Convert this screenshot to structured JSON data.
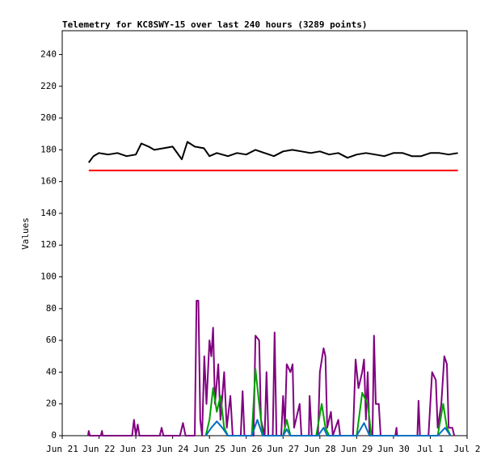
{
  "chart_data": {
    "type": "line",
    "title": "Telemetry for KC8SWY-15 over last 240 hours (3289 points)",
    "y_label": "Values",
    "xlim": [
      0,
      11
    ],
    "xticks": [
      {
        "value": 0,
        "label": "Jun 21"
      },
      {
        "value": 1,
        "label": "Jun 22"
      },
      {
        "value": 2,
        "label": "Jun 23"
      },
      {
        "value": 3,
        "label": "Jun 24"
      },
      {
        "value": 4,
        "label": "Jun 25"
      },
      {
        "value": 5,
        "label": "Jun 26"
      },
      {
        "value": 6,
        "label": "Jun 27"
      },
      {
        "value": 7,
        "label": "Jun 28"
      },
      {
        "value": 8,
        "label": "Jun 29"
      },
      {
        "value": 9,
        "label": "Jun 30"
      },
      {
        "value": 10,
        "label": "Jul 1"
      },
      {
        "value": 11,
        "label": "Jul 2"
      }
    ],
    "ylim": [
      0,
      255
    ],
    "yticks": [
      0,
      20,
      40,
      60,
      80,
      100,
      120,
      140,
      160,
      180,
      200,
      220,
      240
    ],
    "grid": false,
    "series": [
      {
        "color": "#000000",
        "x": [
          0.72,
          0.85,
          1.0,
          1.25,
          1.5,
          1.75,
          2.0,
          2.15,
          2.35,
          2.5,
          2.75,
          3.0,
          3.25,
          3.4,
          3.6,
          3.85,
          4.0,
          4.2,
          4.5,
          4.75,
          5.0,
          5.25,
          5.5,
          5.75,
          6.0,
          6.25,
          6.5,
          6.75,
          7.0,
          7.25,
          7.5,
          7.75,
          8.0,
          8.25,
          8.5,
          8.75,
          9.0,
          9.25,
          9.5,
          9.75,
          10.0,
          10.25,
          10.5,
          10.75
        ],
        "values": [
          172,
          176,
          178,
          177,
          178,
          176,
          177,
          184,
          182,
          180,
          181,
          182,
          174,
          185,
          182,
          181,
          176,
          178,
          176,
          178,
          177,
          180,
          178,
          176,
          179,
          180,
          179,
          178,
          179,
          177,
          178,
          175,
          177,
          178,
          177,
          176,
          178,
          178,
          176,
          176,
          178,
          178,
          177,
          178
        ]
      },
      {
        "color": "#ff0000",
        "x": [
          0.72,
          10.75
        ],
        "values": [
          167,
          167
        ]
      },
      {
        "color": "#800080",
        "x": [
          0.7,
          0.72,
          0.75,
          1.05,
          1.08,
          1.1,
          1.9,
          1.95,
          2.0,
          2.05,
          2.1,
          2.65,
          2.7,
          2.75,
          3.2,
          3.28,
          3.35,
          3.6,
          3.65,
          3.7,
          3.75,
          3.8,
          3.86,
          3.92,
          4.0,
          4.05,
          4.1,
          4.15,
          4.24,
          4.3,
          4.4,
          4.47,
          4.57,
          4.63,
          4.85,
          4.9,
          4.95,
          5.2,
          5.25,
          5.35,
          5.4,
          5.5,
          5.55,
          5.6,
          5.72,
          5.77,
          5.82,
          5.95,
          6.0,
          6.05,
          6.1,
          6.2,
          6.26,
          6.3,
          6.45,
          6.5,
          6.7,
          6.72,
          6.78,
          6.95,
          7.0,
          7.1,
          7.15,
          7.2,
          7.3,
          7.35,
          7.5,
          7.55,
          7.9,
          7.97,
          8.05,
          8.15,
          8.2,
          8.25,
          8.3,
          8.35,
          8.43,
          8.47,
          8.52,
          8.6,
          8.65,
          9.05,
          9.08,
          9.1,
          9.65,
          9.68,
          9.72,
          9.95,
          10.05,
          10.15,
          10.2,
          10.3,
          10.38,
          10.45,
          10.5,
          10.6,
          10.65
        ],
        "values": [
          0,
          3,
          0,
          0,
          3,
          0,
          0,
          10,
          0,
          7,
          0,
          0,
          5,
          0,
          0,
          8,
          0,
          0,
          85,
          85,
          10,
          0,
          50,
          20,
          60,
          50,
          68,
          20,
          45,
          10,
          40,
          5,
          25,
          0,
          0,
          28,
          0,
          0,
          63,
          60,
          10,
          0,
          40,
          0,
          0,
          65,
          0,
          0,
          25,
          5,
          45,
          40,
          45,
          5,
          20,
          0,
          0,
          25,
          0,
          0,
          40,
          55,
          50,
          5,
          15,
          0,
          10,
          0,
          0,
          48,
          30,
          40,
          48,
          10,
          40,
          0,
          0,
          63,
          20,
          20,
          0,
          0,
          5,
          0,
          0,
          22,
          0,
          0,
          40,
          35,
          5,
          20,
          50,
          45,
          5,
          5,
          0
        ]
      },
      {
        "color": "#00a000",
        "x": [
          3.9,
          4.0,
          4.1,
          4.2,
          4.3,
          4.4,
          4.5,
          5.15,
          5.25,
          5.35,
          5.45,
          6.0,
          6.1,
          6.2,
          6.9,
          7.05,
          7.15,
          7.25,
          8.0,
          8.15,
          8.3,
          8.4,
          10.2,
          10.35,
          10.45,
          10.55
        ],
        "values": [
          0,
          10,
          30,
          15,
          25,
          5,
          0,
          0,
          42,
          20,
          0,
          0,
          10,
          0,
          0,
          20,
          5,
          0,
          0,
          27,
          20,
          0,
          0,
          20,
          5,
          0
        ]
      },
      {
        "color": "#0070c0",
        "x": [
          3.9,
          4.05,
          4.2,
          4.35,
          4.5,
          5.15,
          5.3,
          5.45,
          6.0,
          6.1,
          6.2,
          6.95,
          7.1,
          7.2,
          8.0,
          8.2,
          8.35,
          10.2,
          10.4,
          10.55
        ],
        "values": [
          0,
          5,
          9,
          5,
          0,
          0,
          10,
          0,
          0,
          4,
          0,
          0,
          5,
          0,
          0,
          8,
          0,
          0,
          5,
          0
        ]
      }
    ]
  }
}
